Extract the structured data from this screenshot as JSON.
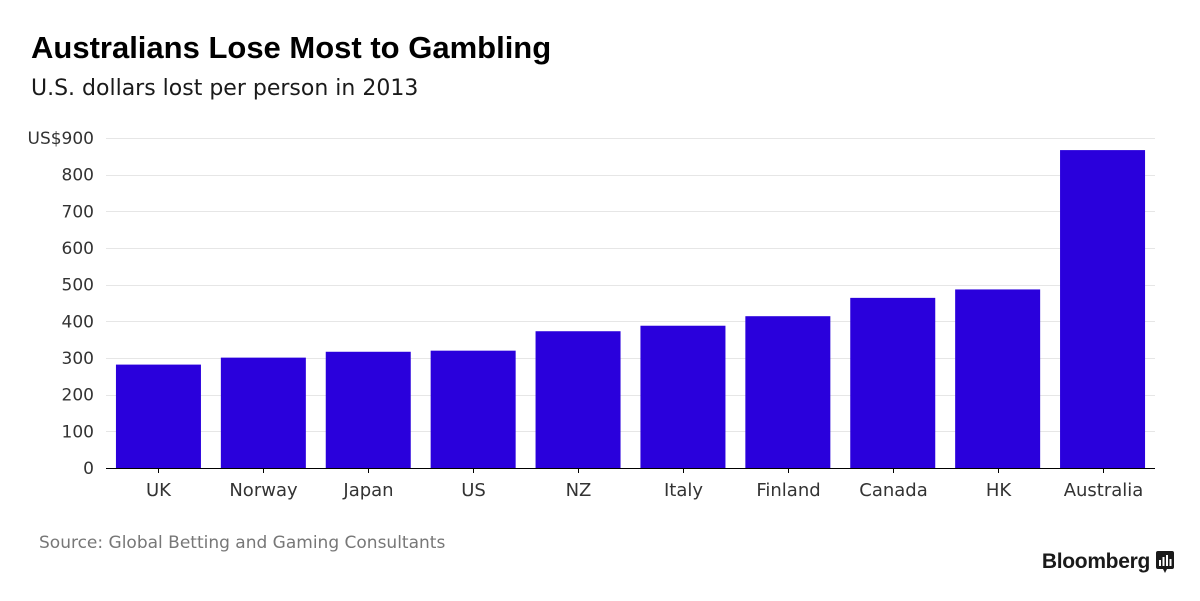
{
  "header": {
    "title": "Australians Lose Most to Gambling",
    "subtitle": "U.S. dollars lost per person in 2013"
  },
  "footer": {
    "source": "Source: Global Betting and Gaming Consultants",
    "brand": "Bloomberg",
    "brand_icon": "bloomberg-terminal-icon"
  },
  "colors": {
    "bar": "#2A00DC",
    "grid": "#e6e6e6",
    "axis": "#000000",
    "tick_text": "#333333"
  },
  "chart_data": {
    "type": "bar",
    "title": "Australians Lose Most to Gambling",
    "subtitle": "U.S. dollars lost per person in 2013",
    "categories": [
      "UK",
      "Norway",
      "Japan",
      "US",
      "NZ",
      "Italy",
      "Finland",
      "Canada",
      "HK",
      "Australia"
    ],
    "values": [
      282,
      301,
      317,
      320,
      373,
      388,
      414,
      464,
      487,
      867
    ],
    "y_ticks": [
      0,
      100,
      200,
      300,
      400,
      500,
      600,
      700,
      800,
      900
    ],
    "y_tick_labels": [
      "0",
      "100",
      "200",
      "300",
      "400",
      "500",
      "600",
      "700",
      "800",
      "US$900"
    ],
    "ylim": [
      0,
      900
    ],
    "xlabel": "",
    "ylabel": "",
    "grid": true,
    "legend": "none"
  }
}
